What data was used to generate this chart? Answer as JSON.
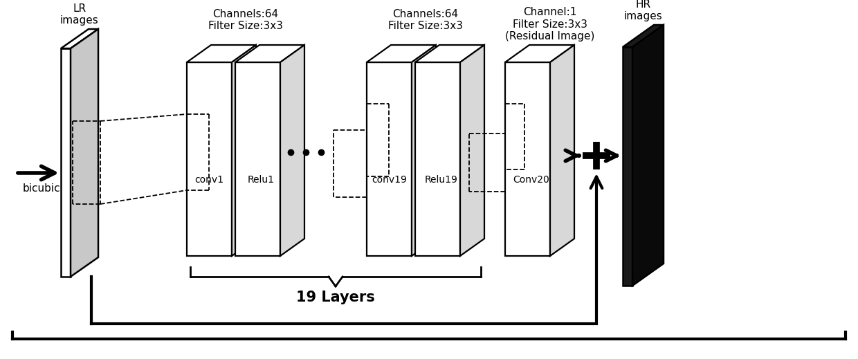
{
  "bg_color": "#ffffff",
  "lr_label": "LR\nimages",
  "hr_label": "HR\nimages",
  "bicubic_label": "bicubic",
  "layers_label": "19 Layers",
  "group1_label": "Channels:64\nFilter Size:3x3",
  "group2_label": "Channels:64\nFilter Size:3x3",
  "group3_label": "Channel:1\nFilter Size:3x3\n(Residual Image)",
  "conv_labels": [
    "conv1",
    "Relu1",
    "conv19",
    "Relu19",
    "Conv20"
  ]
}
